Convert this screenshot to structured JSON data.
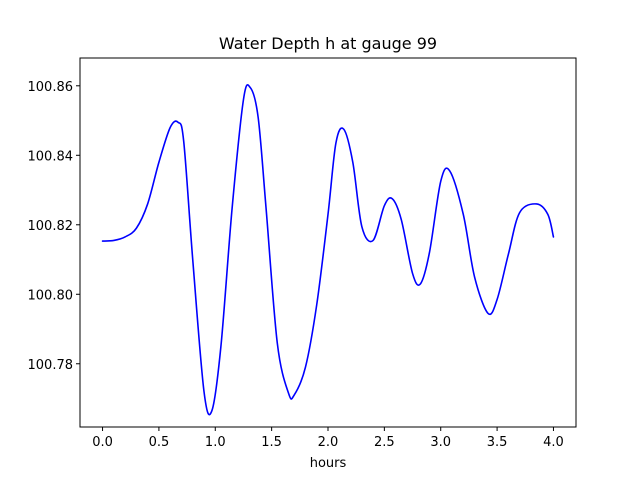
{
  "chart_data": {
    "type": "line",
    "title": "Water Depth h at gauge 99",
    "xlabel": "hours",
    "ylabel": "",
    "xlim": [
      -0.2,
      4.2
    ],
    "ylim": [
      100.7618,
      100.868
    ],
    "xticks": [
      0.0,
      0.5,
      1.0,
      1.5,
      2.0,
      2.5,
      3.0,
      3.5,
      4.0
    ],
    "xtick_labels": [
      "0.0",
      "0.5",
      "1.0",
      "1.5",
      "2.0",
      "2.5",
      "3.0",
      "3.5",
      "4.0"
    ],
    "yticks": [
      100.78,
      100.8,
      100.82,
      100.84,
      100.86
    ],
    "ytick_labels": [
      "100.78",
      "100.80",
      "100.82",
      "100.84",
      "100.86"
    ],
    "grid": false,
    "series": [
      {
        "color": "#0000ff",
        "x": [
          0.0,
          0.1,
          0.2,
          0.3,
          0.4,
          0.5,
          0.6,
          0.67,
          0.72,
          0.8,
          0.9,
          0.97,
          1.05,
          1.15,
          1.25,
          1.31,
          1.38,
          1.45,
          1.55,
          1.65,
          1.7,
          1.8,
          1.9,
          2.0,
          2.07,
          2.14,
          2.22,
          2.3,
          2.4,
          2.5,
          2.57,
          2.65,
          2.75,
          2.82,
          2.9,
          3.0,
          3.08,
          3.2,
          3.3,
          3.42,
          3.5,
          3.6,
          3.7,
          3.85,
          3.95,
          4.0
        ],
        "y": [
          100.8153,
          100.8155,
          100.8165,
          100.819,
          100.826,
          100.838,
          100.848,
          100.8495,
          100.844,
          100.81,
          100.772,
          100.7665,
          100.785,
          100.825,
          100.856,
          100.8595,
          100.851,
          100.825,
          100.786,
          100.7715,
          100.771,
          100.779,
          100.797,
          100.823,
          100.8435,
          100.8475,
          100.838,
          100.8195,
          100.8155,
          100.8255,
          100.8275,
          100.8215,
          100.806,
          100.803,
          100.812,
          100.8325,
          100.8355,
          100.823,
          100.805,
          100.7945,
          100.7985,
          100.8115,
          100.8235,
          100.826,
          100.823,
          100.8165
        ]
      }
    ]
  }
}
